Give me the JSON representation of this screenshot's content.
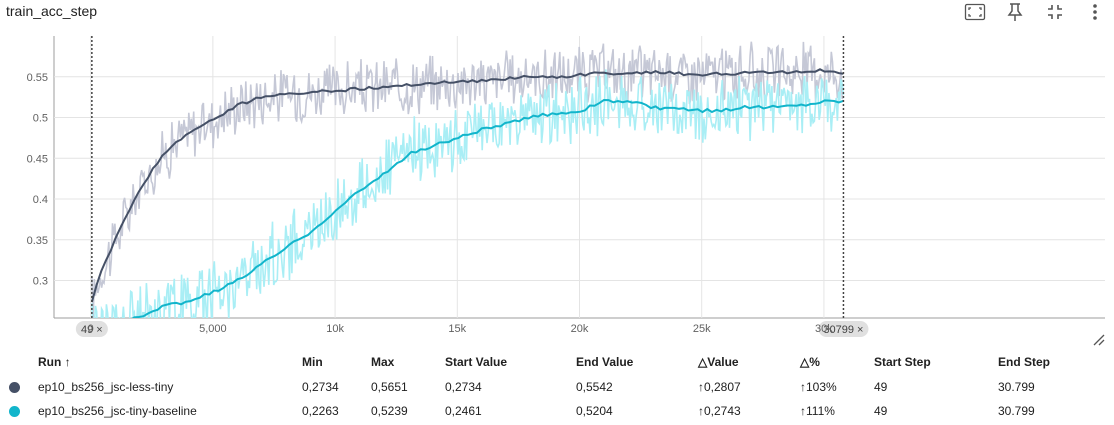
{
  "header": {
    "title": "train_acc_step"
  },
  "toolbar": {
    "icons": [
      "fit-screen-icon",
      "pin-icon",
      "collapse-icon",
      "more-vert-icon"
    ]
  },
  "chart_data": {
    "type": "line",
    "title": "train_acc_step",
    "xlabel": "",
    "ylabel": "",
    "xlim": [
      -1500,
      41500
    ],
    "ylim": [
      0.254,
      0.6
    ],
    "x_ticks": [
      {
        "value": 0,
        "label": "0"
      },
      {
        "value": 5000,
        "label": "5,000"
      },
      {
        "value": 10000,
        "label": "10k"
      },
      {
        "value": 15000,
        "label": "15k"
      },
      {
        "value": 20000,
        "label": "20k"
      },
      {
        "value": 25000,
        "label": "25k"
      },
      {
        "value": 30000,
        "label": "30k"
      }
    ],
    "y_ticks": [
      0.3,
      0.35,
      0.4,
      0.45,
      0.5,
      0.55
    ],
    "y_tick_labels": [
      "0.3",
      "0.35",
      "0.4",
      "0.45",
      "0.5",
      "0.55"
    ],
    "grid": true,
    "step_markers": [
      {
        "step": 49,
        "label": "49 ×"
      },
      {
        "step": 30799,
        "label": "30799 ×"
      }
    ],
    "series": [
      {
        "color": "#455066",
        "raw_color": "#c5c8d6",
        "x": [
          49,
          300,
          700,
          1000,
          1500,
          2000,
          2500,
          3000,
          3500,
          4000,
          4500,
          5000,
          5500,
          6000,
          6500,
          7000,
          7500,
          8000,
          8500,
          9000,
          9500,
          10000,
          11000,
          12000,
          13000,
          14000,
          15000,
          16000,
          17000,
          18000,
          19000,
          20000,
          21000,
          22000,
          23000,
          24000,
          25000,
          26000,
          27000,
          28000,
          29000,
          30000,
          30799
        ],
        "y": [
          0.2734,
          0.3,
          0.33,
          0.35,
          0.38,
          0.41,
          0.435,
          0.455,
          0.47,
          0.48,
          0.49,
          0.497,
          0.505,
          0.515,
          0.52,
          0.525,
          0.527,
          0.528,
          0.53,
          0.532,
          0.532,
          0.533,
          0.535,
          0.537,
          0.54,
          0.542,
          0.544,
          0.545,
          0.548,
          0.55,
          0.55,
          0.552,
          0.555,
          0.553,
          0.556,
          0.554,
          0.552,
          0.554,
          0.555,
          0.555,
          0.556,
          0.558,
          0.5542
        ],
        "noise": 0.03
      },
      {
        "color": "#12b5cb",
        "raw_color": "#a9eef5",
        "x": [
          49,
          1000,
          2000,
          3000,
          4000,
          5000,
          6000,
          7000,
          8000,
          9000,
          10000,
          11000,
          12000,
          13000,
          14000,
          15000,
          16000,
          17000,
          18000,
          19000,
          20000,
          21000,
          22000,
          23000,
          24000,
          25000,
          26000,
          27000,
          28000,
          29000,
          30000,
          30799
        ],
        "y": [
          0.2461,
          0.245,
          0.255,
          0.268,
          0.275,
          0.285,
          0.3,
          0.32,
          0.34,
          0.36,
          0.385,
          0.41,
          0.43,
          0.455,
          0.465,
          0.475,
          0.485,
          0.492,
          0.5,
          0.505,
          0.508,
          0.52,
          0.52,
          0.512,
          0.51,
          0.508,
          0.51,
          0.513,
          0.513,
          0.515,
          0.52,
          0.5204
        ],
        "noise": 0.035
      }
    ]
  },
  "table": {
    "headers": {
      "run": "Run ↑",
      "min": "Min",
      "max": "Max",
      "start_value": "Start Value",
      "end_value": "End Value",
      "delta_value": "△Value",
      "delta_pct": "△%",
      "start_step": "Start Step",
      "end_step": "End Step"
    },
    "rows": [
      {
        "color": "#455066",
        "run": "ep10_bs256_jsc-less-tiny",
        "min": "0,2734",
        "max": "0,5651",
        "start_value": "0,2734",
        "end_value": "0,5542",
        "delta_value": "↑0,2807",
        "delta_pct": "↑103%",
        "start_step": "49",
        "end_step": "30.799"
      },
      {
        "color": "#12b5cb",
        "run": "ep10_bs256_jsc-tiny-baseline",
        "min": "0,2263",
        "max": "0,5239",
        "start_value": "0,2461",
        "end_value": "0,5204",
        "delta_value": "↑0,2743",
        "delta_pct": "↑111%",
        "start_step": "49",
        "end_step": "30.799"
      }
    ]
  }
}
